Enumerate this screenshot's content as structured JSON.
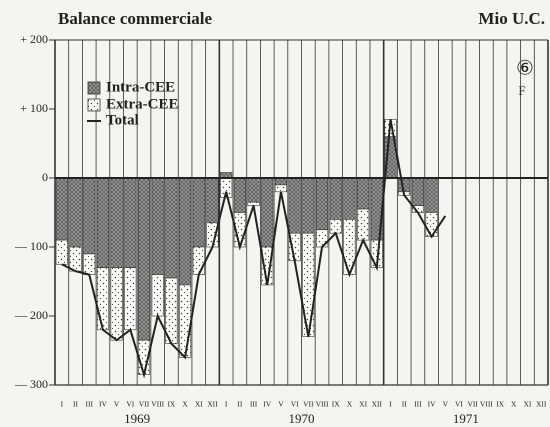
{
  "chart_data": {
    "type": "bar",
    "title": "Balance commerciale",
    "unit_label": "Mio U.C.",
    "annotations": [
      "⑥",
      "F"
    ],
    "categories": [
      "I",
      "II",
      "III",
      "IV",
      "V",
      "VI",
      "VII",
      "VIII",
      "IX",
      "X",
      "XI",
      "XII",
      "I",
      "II",
      "III",
      "IV",
      "V",
      "VI",
      "VII",
      "VIII",
      "IX",
      "X",
      "XI",
      "XII",
      "I",
      "II",
      "III",
      "IV",
      "V",
      "VI",
      "VII",
      "VIII",
      "IX",
      "X",
      "XI",
      "XII"
    ],
    "years": [
      "1969",
      "1970",
      "1971"
    ],
    "series": [
      {
        "name": "Intra-CEE",
        "color": "#888888",
        "values": [
          -90,
          -100,
          -110,
          -130,
          -130,
          -130,
          -235,
          -140,
          -145,
          -155,
          -100,
          -65,
          8,
          -50,
          -35,
          -100,
          -10,
          -80,
          -80,
          -75,
          -60,
          -60,
          -45,
          -90,
          60,
          -20,
          -40,
          -50,
          null,
          null,
          null,
          null,
          null,
          null,
          null,
          null
        ]
      },
      {
        "name": "Extra-CEE",
        "color": "#ffffff",
        "values": [
          -35,
          -35,
          -30,
          -90,
          -105,
          -90,
          -50,
          -60,
          -95,
          -105,
          -40,
          -35,
          -28,
          -50,
          -5,
          -55,
          -10,
          -40,
          -150,
          -25,
          -20,
          -80,
          -45,
          -40,
          25,
          -5,
          -10,
          -35,
          null,
          null,
          null,
          null,
          null,
          null,
          null,
          null
        ]
      },
      {
        "name": "Total",
        "color": "#222222",
        "type": "line",
        "values": [
          -125,
          -135,
          -140,
          -220,
          -235,
          -220,
          -285,
          -200,
          -240,
          -260,
          -140,
          -100,
          -20,
          -100,
          -40,
          -155,
          -20,
          -120,
          -230,
          -100,
          -80,
          -140,
          -90,
          -130,
          85,
          -25,
          -50,
          -85,
          -55,
          null,
          null,
          null,
          null,
          null,
          null,
          null
        ]
      }
    ],
    "ylim": [
      -300,
      200
    ],
    "yticks": [
      {
        "value": 200,
        "label": "+ 200"
      },
      {
        "value": 100,
        "label": "+ 100"
      },
      0,
      {
        "value": -100,
        "label": "— 100"
      },
      {
        "value": -200,
        "label": "— 200"
      },
      {
        "value": -300,
        "label": "— 300"
      }
    ],
    "stacked": true,
    "grid": true
  }
}
